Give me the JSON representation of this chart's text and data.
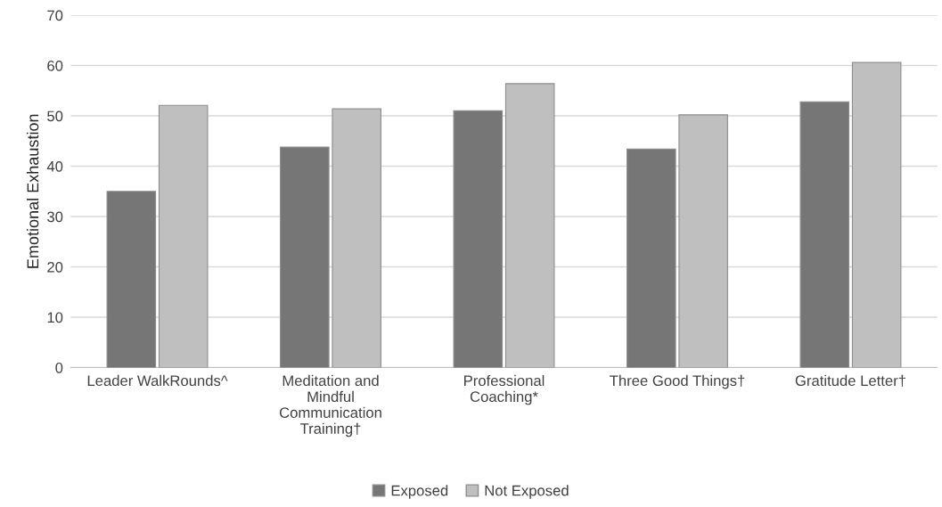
{
  "chart_data": {
    "type": "bar",
    "categories": [
      "Leader WalkRounds^",
      "Meditation and\nMindful\nCommunication\nTraining†",
      "Professional\nCoaching*",
      "Three Good Things†",
      "Gratitude Letter†"
    ],
    "ylabel": "Emotional Exhaustion",
    "series": [
      {
        "name": "Exposed",
        "color": "#767676",
        "values": [
          35.0,
          43.8,
          51.0,
          43.4,
          52.8
        ]
      },
      {
        "name": "Not Exposed",
        "color": "#bfbfbf",
        "values": [
          52.1,
          51.4,
          56.4,
          50.2,
          60.6
        ]
      }
    ],
    "ylim": [
      0,
      70
    ],
    "yticks": [
      0,
      10,
      20,
      30,
      40,
      50,
      60,
      70
    ],
    "grid": "y",
    "legend": "bottom"
  }
}
